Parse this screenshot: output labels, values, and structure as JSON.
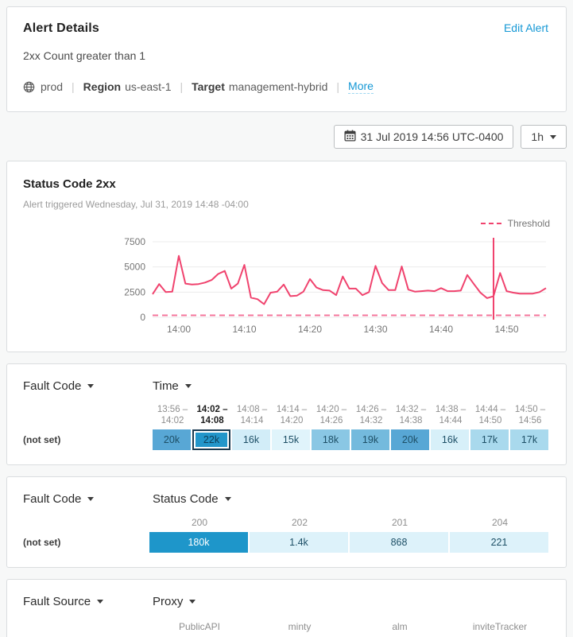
{
  "colors": {
    "accent_blue": "#1598d5",
    "line_pink": "#f0436e",
    "threshold_pink": "#f4769b",
    "grid_gray": "#ececec",
    "axis_text": "#757575",
    "selected_cell_border": "#1c3c52"
  },
  "alert_card": {
    "title": "Alert Details",
    "edit_link": "Edit Alert",
    "description": "2xx Count greater than 1",
    "environment": "prod",
    "region_label": "Region",
    "region": "us-east-1",
    "target_label": "Target",
    "target": "management-hybrid",
    "more_link": "More"
  },
  "toolbar": {
    "datetime": "31 Jul 2019 14:56 UTC-0400",
    "range": "1h"
  },
  "chart_card": {
    "title": "Status Code 2xx",
    "subtitle": "Alert triggered Wednesday, Jul 31, 2019 14:48 -04:00",
    "legend_label": "Threshold"
  },
  "chart_data": {
    "type": "line",
    "title": "Status Code 2xx",
    "x_range": [
      "13:56",
      "14:56"
    ],
    "x_ticks": [
      {
        "minute": 4,
        "label": "14:00"
      },
      {
        "minute": 14,
        "label": "14:10"
      },
      {
        "minute": 24,
        "label": "14:20"
      },
      {
        "minute": 34,
        "label": "14:30"
      },
      {
        "minute": 44,
        "label": "14:40"
      },
      {
        "minute": 54,
        "label": "14:50"
      }
    ],
    "y_ticks": [
      0,
      2500,
      5000,
      7500
    ],
    "ylim": [
      0,
      7500
    ],
    "threshold": 1,
    "alert_marker_minute": 52,
    "alert_marker_time": "14:48",
    "series": [
      {
        "name": "2xx count",
        "minutes_from_start": "one point per minute starting 13:56",
        "values": [
          2300,
          3300,
          2500,
          2550,
          6100,
          3350,
          3250,
          3300,
          3450,
          3700,
          4300,
          4600,
          2850,
          3350,
          5200,
          1950,
          1800,
          1300,
          2450,
          2550,
          3250,
          2100,
          2150,
          2550,
          3800,
          2950,
          2700,
          2650,
          2200,
          4050,
          2850,
          2850,
          2200,
          2500,
          5100,
          3400,
          2700,
          2700,
          5050,
          2750,
          2550,
          2600,
          2650,
          2600,
          2900,
          2600,
          2600,
          2650,
          4200,
          3300,
          2450,
          1900,
          2100,
          4400,
          2600,
          2450,
          2350,
          2350,
          2350,
          2500,
          2900
        ]
      }
    ]
  },
  "time_table": {
    "dimension_label": "Fault Code",
    "column_label": "Time",
    "columns": [
      {
        "from": "13:56",
        "to": "14:02",
        "selected": false
      },
      {
        "from": "14:02",
        "to": "14:08",
        "selected": true
      },
      {
        "from": "14:08",
        "to": "14:14",
        "selected": false
      },
      {
        "from": "14:14",
        "to": "14:20",
        "selected": false
      },
      {
        "from": "14:20",
        "to": "14:26",
        "selected": false
      },
      {
        "from": "14:26",
        "to": "14:32",
        "selected": false
      },
      {
        "from": "14:32",
        "to": "14:38",
        "selected": false
      },
      {
        "from": "14:38",
        "to": "14:44",
        "selected": false
      },
      {
        "from": "14:44",
        "to": "14:50",
        "selected": false
      },
      {
        "from": "14:50",
        "to": "14:56",
        "selected": false
      }
    ],
    "row_label": "(not set)",
    "cells": [
      {
        "value": "20k",
        "color": "#58a7d5",
        "selected": false
      },
      {
        "value": "22k",
        "color": "#2396ca",
        "selected": true
      },
      {
        "value": "16k",
        "color": "#d2edf8",
        "selected": false
      },
      {
        "value": "15k",
        "color": "#e0f4fb",
        "selected": false
      },
      {
        "value": "18k",
        "color": "#8ac7e4",
        "selected": false
      },
      {
        "value": "19k",
        "color": "#74badd",
        "selected": false
      },
      {
        "value": "20k",
        "color": "#58a7d5",
        "selected": false
      },
      {
        "value": "16k",
        "color": "#d7f0f9",
        "selected": false
      },
      {
        "value": "17k",
        "color": "#a9d9ed",
        "selected": false
      },
      {
        "value": "17k",
        "color": "#a9d9ed",
        "selected": false
      }
    ]
  },
  "status_table": {
    "dimension_label": "Fault Code",
    "column_label": "Status Code",
    "columns": [
      "200",
      "202",
      "201",
      "204"
    ],
    "row_label": "(not set)",
    "cells": [
      {
        "value": "180k",
        "color": "#1e96ca",
        "text_color": "#ffffff"
      },
      {
        "value": "1.4k",
        "color": "#ddf2fa"
      },
      {
        "value": "868",
        "color": "#ddf2fa"
      },
      {
        "value": "221",
        "color": "#ddf2fa"
      }
    ]
  },
  "proxy_table": {
    "dimension_label": "Fault Source",
    "column_label": "Proxy",
    "columns": [
      "PublicAPI",
      "minty",
      "alm",
      "inviteTracker"
    ]
  }
}
